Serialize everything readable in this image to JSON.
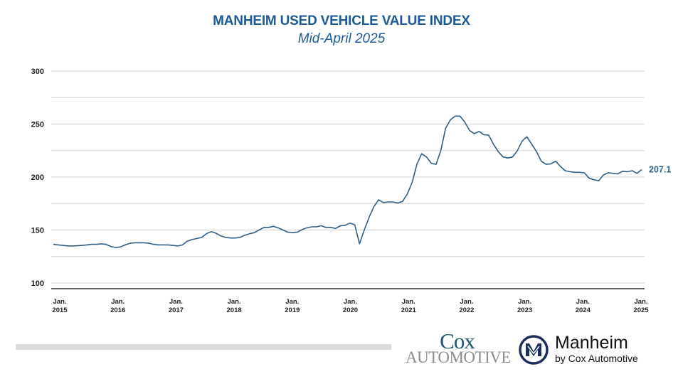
{
  "chart_data": {
    "type": "line",
    "title": "MANHEIM USED VEHICLE VALUE INDEX",
    "subtitle": "Mid-April 2025",
    "xlabel": "",
    "ylabel": "",
    "ylim": [
      100,
      300
    ],
    "yticks": [
      "300",
      "250",
      "200",
      "150",
      "100"
    ],
    "ytick_values": [
      300,
      250,
      200,
      150,
      100
    ],
    "grid": true,
    "x_start": "2015-01",
    "x_frequency": "monthly",
    "xticks": [
      {
        "top": "Jan.",
        "bottom": "2015"
      },
      {
        "top": "Jan.",
        "bottom": "2016"
      },
      {
        "top": "Jan.",
        "bottom": "2017"
      },
      {
        "top": "Jan.",
        "bottom": "2018"
      },
      {
        "top": "Jan.",
        "bottom": "2019"
      },
      {
        "top": "Jan.",
        "bottom": "2020"
      },
      {
        "top": "Jan.",
        "bottom": "2021"
      },
      {
        "top": "Jan.",
        "bottom": "2022"
      },
      {
        "top": "Jan.",
        "bottom": "2023"
      },
      {
        "top": "Jan.",
        "bottom": "2024"
      },
      {
        "top": "Jan.",
        "bottom": "2025"
      }
    ],
    "series": [
      {
        "color": "#2e5f86",
        "values": [
          136.5,
          136,
          135.5,
          135,
          135,
          135.2,
          135.5,
          136,
          136.5,
          136.5,
          137,
          136.5,
          134.5,
          133.5,
          134,
          136,
          137.5,
          138,
          138,
          138,
          137.5,
          136.5,
          136,
          136,
          136,
          135.5,
          135,
          136,
          139.5,
          141,
          142,
          143,
          146.5,
          148.5,
          147,
          144.5,
          143,
          142.5,
          142.5,
          143,
          145,
          146.5,
          147.5,
          150,
          152.5,
          152.5,
          153.5,
          152,
          150,
          148,
          147.5,
          148,
          150.5,
          152,
          153,
          153,
          154,
          152.5,
          152.5,
          151.5,
          154,
          154.5,
          156.5,
          155,
          137,
          150,
          162,
          172,
          178.5,
          176,
          176.5,
          176.5,
          175.5,
          177,
          184,
          195,
          212,
          222,
          219,
          213,
          212,
          225,
          246,
          254,
          257.5,
          257.5,
          252,
          244,
          241,
          243,
          240,
          239.5,
          231,
          224,
          219,
          218,
          219,
          225,
          234,
          238,
          231,
          224,
          215,
          212,
          212.5,
          215,
          210,
          206,
          205,
          204.5,
          204.5,
          204,
          199,
          197.5,
          196.5,
          202,
          204,
          203.5,
          203,
          205.5,
          205,
          206,
          203.5,
          207.1
        ]
      }
    ],
    "annotations": [
      {
        "label": "207.1",
        "at": "last-point"
      }
    ]
  },
  "footer": {
    "cox_line1": "Cox",
    "cox_line2": "Automotive",
    "manheim_name": "Manheim",
    "manheim_tagline": "by Cox Automotive"
  },
  "colors": {
    "title": "#1d5a98",
    "line": "#2e5f86",
    "grid": "#d9d9d9"
  }
}
